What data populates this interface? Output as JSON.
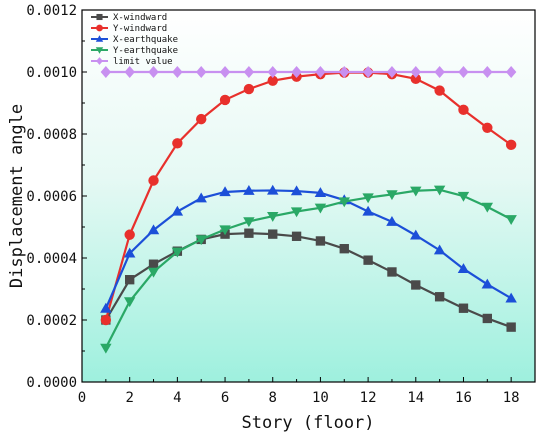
{
  "chart_data": {
    "type": "line",
    "xlabel": "Story (floor)",
    "ylabel": "Displacement angle",
    "xlim": [
      0,
      19
    ],
    "ylim": [
      0,
      0.0012
    ],
    "x_ticks": [
      "0",
      "2",
      "4",
      "6",
      "8",
      "10",
      "12",
      "14",
      "16",
      "18"
    ],
    "y_ticks": [
      "0.0000",
      "0.0002",
      "0.0004",
      "0.0006",
      "0.0008",
      "0.0010",
      "0.0012"
    ],
    "legend_position": "top-left",
    "background": "gradient from white at top to light aqua at bottom",
    "x": [
      1,
      2,
      3,
      4,
      5,
      6,
      7,
      8,
      9,
      10,
      11,
      12,
      13,
      14,
      15,
      16,
      17,
      18
    ],
    "series": [
      {
        "name": "X-windward",
        "color": "#4a4a4a",
        "marker": "square",
        "values": [
          0.0002,
          0.00033,
          0.00038,
          0.000422,
          0.00046,
          0.000477,
          0.00048,
          0.000477,
          0.00047,
          0.000455,
          0.00043,
          0.000393,
          0.000355,
          0.000313,
          0.000275,
          0.000238,
          0.000205,
          0.000177
        ]
      },
      {
        "name": "Y-windward",
        "color": "#e8302c",
        "marker": "circle",
        "values": [
          0.0002,
          0.000475,
          0.00065,
          0.00077,
          0.000848,
          0.00091,
          0.000945,
          0.000972,
          0.000985,
          0.000993,
          0.000998,
          0.000998,
          0.000993,
          0.000978,
          0.00094,
          0.000878,
          0.00082,
          0.000765
        ]
      },
      {
        "name": "X-earthquake",
        "color": "#1c4fd8",
        "marker": "triangle-up",
        "values": [
          0.000237,
          0.000415,
          0.00049,
          0.00055,
          0.000593,
          0.000613,
          0.000617,
          0.000618,
          0.000616,
          0.00061,
          0.000587,
          0.00055,
          0.000517,
          0.000473,
          0.000425,
          0.000365,
          0.000315,
          0.00027
        ]
      },
      {
        "name": "Y-earthquake",
        "color": "#2aa866",
        "marker": "triangle-down",
        "values": [
          0.00011,
          0.00026,
          0.000355,
          0.00042,
          0.00046,
          0.000492,
          0.000518,
          0.000535,
          0.00055,
          0.000562,
          0.000582,
          0.000595,
          0.000605,
          0.000617,
          0.00062,
          0.0006,
          0.000565,
          0.000525
        ]
      },
      {
        "name": "limit value",
        "color": "#c890f0",
        "marker": "diamond",
        "values": [
          0.001,
          0.001,
          0.001,
          0.001,
          0.001,
          0.001,
          0.001,
          0.001,
          0.001,
          0.001,
          0.001,
          0.001,
          0.001,
          0.001,
          0.001,
          0.001,
          0.001,
          0.001
        ]
      }
    ]
  }
}
